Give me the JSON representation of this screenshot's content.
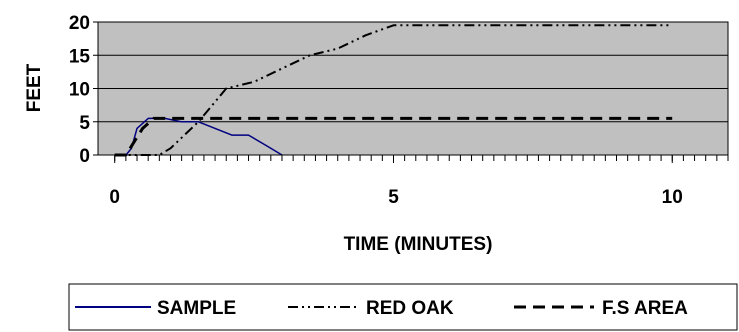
{
  "chart_data": {
    "type": "line",
    "xlabel": "TIME (MINUTES)",
    "ylabel": "FEET",
    "xlim": [
      -0.3,
      11
    ],
    "ylim": [
      0,
      20
    ],
    "xticks": [
      "0",
      "5",
      "10"
    ],
    "yticks": [
      "0",
      "5",
      "10",
      "15",
      "20"
    ],
    "plot_background": "#c0c0c0",
    "legend_position": "bottom",
    "series": [
      {
        "name": "SAMPLE",
        "color": "#000080",
        "style": "solid",
        "points": [
          [
            0,
            0
          ],
          [
            0.2,
            0
          ],
          [
            0.3,
            1
          ],
          [
            0.4,
            4
          ],
          [
            0.6,
            5.5
          ],
          [
            0.9,
            5.5
          ],
          [
            1.2,
            5
          ],
          [
            1.5,
            5
          ],
          [
            1.8,
            4
          ],
          [
            2.1,
            3
          ],
          [
            2.4,
            3
          ],
          [
            2.7,
            1.5
          ],
          [
            3.0,
            0
          ]
        ]
      },
      {
        "name": "RED OAK",
        "color": "#000000",
        "style": "dash-dot-dot",
        "points": [
          [
            0,
            0
          ],
          [
            0.8,
            0
          ],
          [
            1.0,
            1
          ],
          [
            1.5,
            5
          ],
          [
            1.8,
            8
          ],
          [
            2.0,
            10
          ],
          [
            2.5,
            11
          ],
          [
            3.0,
            13
          ],
          [
            3.5,
            15
          ],
          [
            4.0,
            16
          ],
          [
            4.5,
            18
          ],
          [
            5.0,
            19.5
          ],
          [
            10.0,
            19.5
          ]
        ]
      },
      {
        "name": "F.S AREA",
        "color": "#000000",
        "style": "dashed",
        "points": [
          [
            0,
            0
          ],
          [
            0.2,
            0
          ],
          [
            0.5,
            4
          ],
          [
            0.7,
            5.5
          ],
          [
            10.0,
            5.5
          ]
        ]
      }
    ]
  }
}
